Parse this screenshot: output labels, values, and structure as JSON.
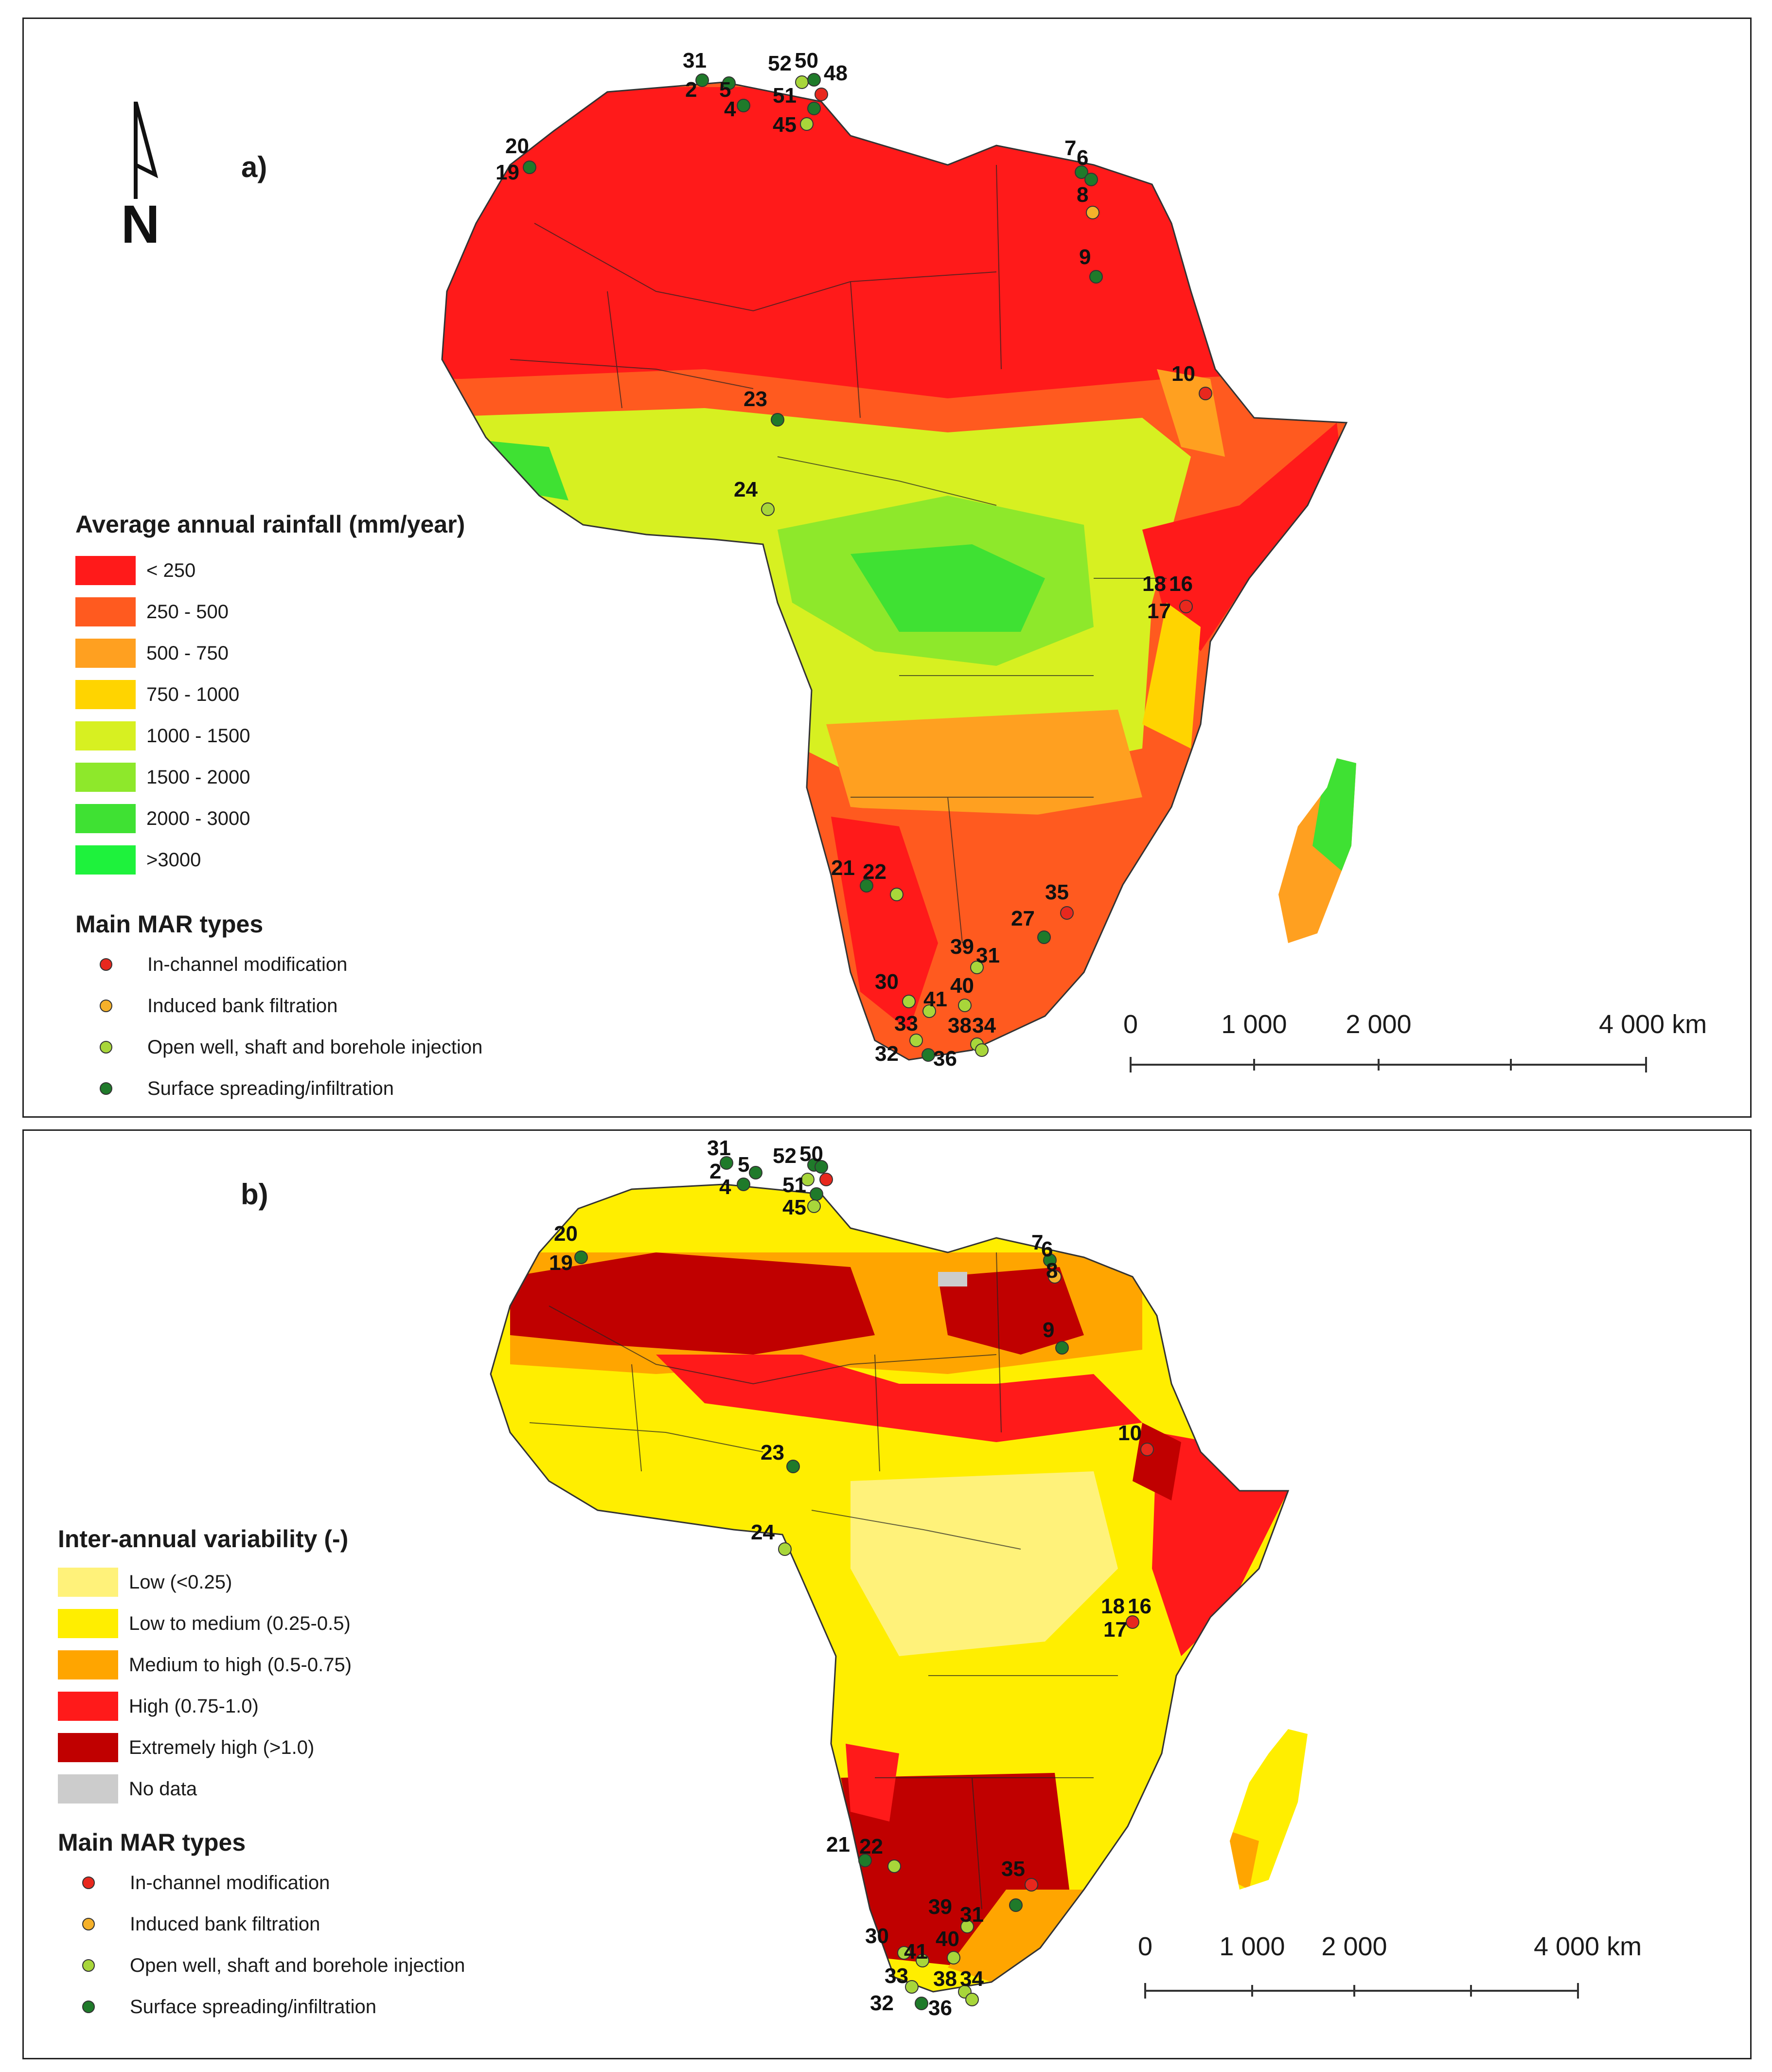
{
  "panel_a": {
    "label": "a)",
    "legend_title": "Average annual rainfall (mm/year)",
    "classes": [
      {
        "label": "< 250",
        "color": "#ff1a1a"
      },
      {
        "label": "250 - 500",
        "color": "#ff5a1f"
      },
      {
        "label": "500 - 750",
        "color": "#ffa020"
      },
      {
        "label": "750 - 1000",
        "color": "#ffd400"
      },
      {
        "label": "1000 - 1500",
        "color": "#d7f021"
      },
      {
        "label": "1500 - 2000",
        "color": "#8ee82b"
      },
      {
        "label": "2000 - 3000",
        "color": "#3fe133"
      },
      {
        "label": ">3000",
        "color": "#1ef23c"
      }
    ],
    "mar_title": "Main MAR types",
    "mar_types": [
      {
        "label": "In-channel modification",
        "color": "#e8281e"
      },
      {
        "label": "Induced bank filtration",
        "color": "#f5b12a"
      },
      {
        "label": "Open well, shaft and borehole injection",
        "color": "#a8d63a"
      },
      {
        "label": "Surface spreading/infiltration",
        "color": "#1f7a2a"
      }
    ],
    "scale": {
      "ticks": [
        "0",
        "1 000",
        "2 000",
        "4 000 km"
      ]
    },
    "site_labels": [
      "31",
      "2",
      "5",
      "52",
      "50",
      "48",
      "51",
      "4",
      "45",
      "20",
      "19",
      "7",
      "6",
      "8",
      "9",
      "10",
      "23",
      "24",
      "18",
      "16",
      "17",
      "21",
      "22",
      "35",
      "27",
      "39",
      "31",
      "30",
      "40",
      "41",
      "33",
      "38",
      "34",
      "32",
      "36"
    ]
  },
  "panel_b": {
    "label": "b)",
    "legend_title": "Inter-annual variability (-)",
    "classes": [
      {
        "label": "Low (<0.25)",
        "color": "#fff27a"
      },
      {
        "label": "Low to medium (0.25-0.5)",
        "color": "#ffee00"
      },
      {
        "label": "Medium to high (0.5-0.75)",
        "color": "#ffa500"
      },
      {
        "label": "High (0.75-1.0)",
        "color": "#ff1a1a"
      },
      {
        "label": "Extremely high (>1.0)",
        "color": "#c00000"
      },
      {
        "label": "No data",
        "color": "#cccccc"
      }
    ],
    "mar_title": "Main MAR types",
    "mar_types": [
      {
        "label": "In-channel modification",
        "color": "#e8281e"
      },
      {
        "label": "Induced bank filtration",
        "color": "#f5b12a"
      },
      {
        "label": "Open well, shaft and borehole injection",
        "color": "#a8d63a"
      },
      {
        "label": "Surface spreading/infiltration",
        "color": "#1f7a2a"
      }
    ],
    "scale": {
      "ticks": [
        "0",
        "1 000",
        "2 000",
        "4 000 km"
      ]
    },
    "site_labels": [
      "31",
      "2",
      "5",
      "52",
      "50",
      "4",
      "51",
      "45",
      "20",
      "19",
      "7",
      "6",
      "8",
      "9",
      "10",
      "23",
      "24",
      "18",
      "16",
      "17",
      "21",
      "22",
      "35",
      "39",
      "31",
      "30",
      "40",
      "41",
      "33",
      "38",
      "34",
      "32",
      "36"
    ]
  },
  "north_arrow": {
    "label": "N"
  }
}
